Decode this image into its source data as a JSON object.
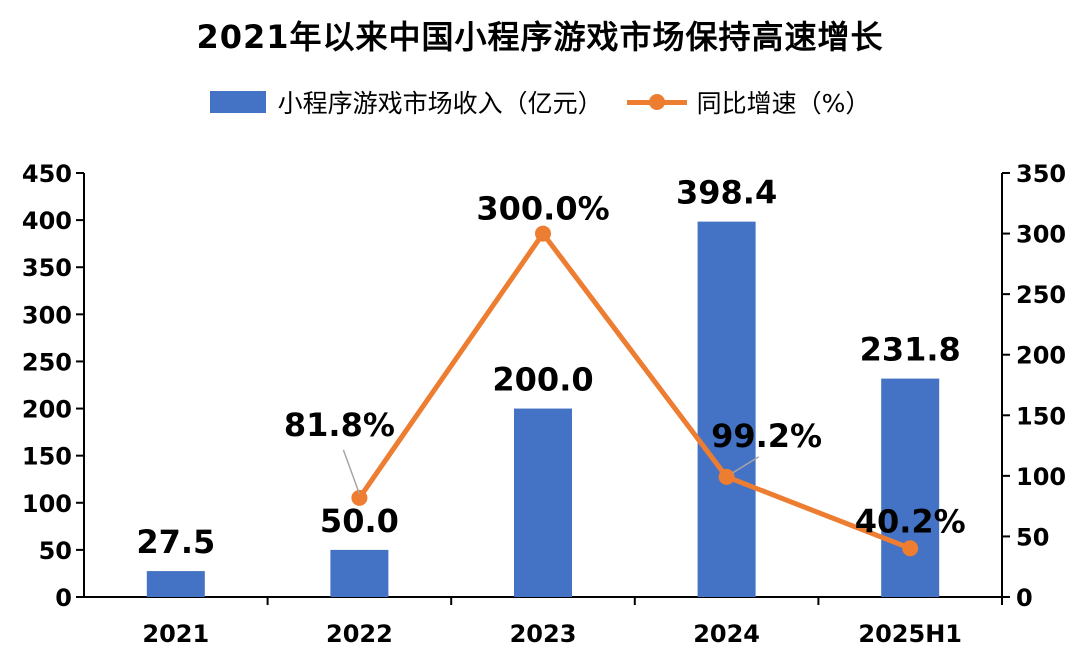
{
  "chart_data": {
    "type": "bar",
    "title": "2021年以来中国小程序游戏市场保持高速增长",
    "categories": [
      "2021",
      "2022",
      "2023",
      "2024",
      "2025H1"
    ],
    "series": [
      {
        "name": "小程序游戏市场收入（亿元）",
        "type": "bar",
        "axis": "left",
        "values": [
          27.5,
          50.0,
          200.0,
          398.4,
          231.8
        ],
        "labels": [
          "27.5",
          "50.0",
          "200.0",
          "398.4",
          "231.8"
        ],
        "color": "#4472C4"
      },
      {
        "name": "同比增速（%）",
        "type": "line",
        "axis": "right",
        "values": [
          null,
          81.8,
          300.0,
          99.2,
          40.2
        ],
        "labels": [
          "",
          "81.8%",
          "300.0%",
          "99.2%",
          "40.2%"
        ],
        "color": "#ED7D31"
      }
    ],
    "y_left": {
      "min": 0,
      "max": 450,
      "ticks": [
        0,
        50,
        100,
        150,
        200,
        250,
        300,
        350,
        400,
        450
      ]
    },
    "y_right": {
      "min": 0,
      "max": 350,
      "ticks": [
        0,
        50,
        100,
        150,
        200,
        250,
        300,
        350
      ]
    },
    "legend": "top-center",
    "grid": false
  }
}
